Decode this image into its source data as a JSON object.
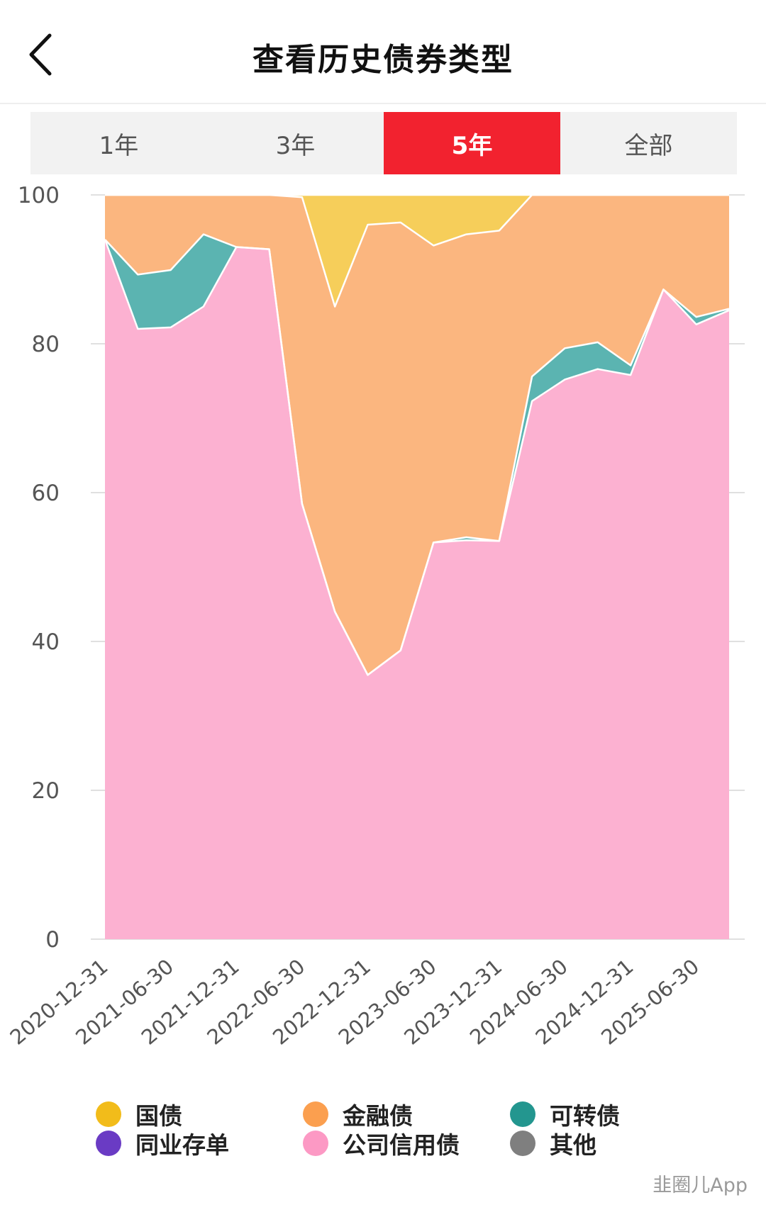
{
  "header": {
    "title": "查看历史债券类型"
  },
  "tabs": [
    {
      "label": "1年",
      "active": false
    },
    {
      "label": "3年",
      "active": false
    },
    {
      "label": "5年",
      "active": true
    },
    {
      "label": "全部",
      "active": false
    }
  ],
  "chart_data": {
    "type": "area",
    "stacked": true,
    "ylim": [
      0,
      100
    ],
    "yticks": [
      0,
      20,
      40,
      60,
      80,
      100
    ],
    "grid": true,
    "legend_position": "bottom",
    "x_tick_labels": [
      "2020-12-31",
      "2021-06-30",
      "2021-12-31",
      "2022-06-30",
      "2022-12-31",
      "2023-06-30",
      "2023-12-31",
      "2024-06-30",
      "2024-12-31",
      "2025-06-30"
    ],
    "x": [
      "2020-12-31",
      "2021-03-31",
      "2021-06-30",
      "2021-09-30",
      "2021-12-31",
      "2022-03-31",
      "2022-06-30",
      "2022-09-30",
      "2022-12-31",
      "2023-03-31",
      "2023-06-30",
      "2023-09-30",
      "2023-12-31",
      "2024-03-31",
      "2024-06-30",
      "2024-09-30",
      "2024-12-31",
      "2025-03-31",
      "2025-06-30",
      "2025-09-30"
    ],
    "series": [
      {
        "name": "公司信用债",
        "color": "#fcb1d1",
        "values": [
          94,
          82,
          82.2,
          85,
          93,
          92.7,
          58.5,
          44,
          35.5,
          38.8,
          53.3,
          53.6,
          53.5,
          72.3,
          75.2,
          76.6,
          75.8,
          87.3,
          82.6,
          84.5
        ]
      },
      {
        "name": "可转债",
        "color": "#5bb4b1",
        "values": [
          0,
          7.3,
          7.7,
          9.7,
          0,
          0,
          0,
          0,
          0,
          0,
          0,
          0.4,
          0,
          3.3,
          4.2,
          3.6,
          1.3,
          0,
          1,
          0.2
        ]
      },
      {
        "name": "金融债",
        "color": "#fbb67f",
        "values": [
          6,
          10.7,
          10.1,
          5.3,
          7,
          7.3,
          41.2,
          41,
          60.5,
          57.5,
          39.9,
          40.7,
          41.7,
          24.4,
          20.6,
          19.8,
          22.9,
          12.7,
          16.4,
          15.3
        ]
      },
      {
        "name": "国债",
        "color": "#f6ce5a",
        "values": [
          0,
          0,
          0,
          0,
          0,
          0,
          0.3,
          15,
          4,
          3.7,
          6.8,
          5.3,
          4.8,
          0,
          0,
          0,
          0,
          0,
          0,
          0
        ]
      },
      {
        "name": "同业存单",
        "color": "#6a3bc4",
        "values": [
          0,
          0,
          0,
          0,
          0,
          0,
          0,
          0,
          0,
          0,
          0,
          0,
          0,
          0,
          0,
          0,
          0,
          0,
          0,
          0
        ]
      },
      {
        "name": "其他",
        "color": "#7f7f7f",
        "values": [
          0,
          0,
          0,
          0,
          0,
          0,
          0,
          0,
          0,
          0,
          0,
          0,
          0,
          0,
          0,
          0,
          0,
          0,
          0,
          0
        ]
      }
    ]
  },
  "legend": [
    {
      "label": "国债",
      "color": "#f2bc1a"
    },
    {
      "label": "金融债",
      "color": "#fb9f4f"
    },
    {
      "label": "可转债",
      "color": "#23968f"
    },
    {
      "label": "同业存单",
      "color": "#6a3bc4"
    },
    {
      "label": "公司信用债",
      "color": "#fc99c4"
    },
    {
      "label": "其他",
      "color": "#7f7f7f"
    }
  ],
  "watermark": "韭圈儿App"
}
